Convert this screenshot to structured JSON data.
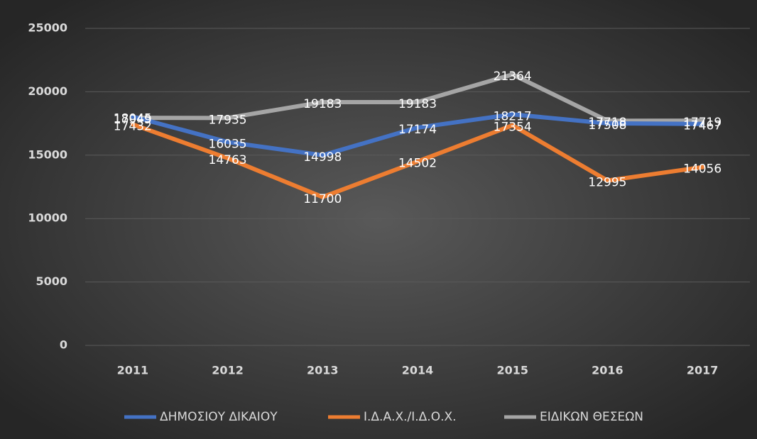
{
  "chart_data": {
    "type": "line",
    "categories": [
      "2011",
      "2012",
      "2013",
      "2014",
      "2015",
      "2016",
      "2017"
    ],
    "series": [
      {
        "name": "ΔΗΜΟΣΙΟΥ ΔΙΚΑΙΟΥ",
        "color": "#4472c4",
        "values": [
          18045,
          16035,
          14998,
          17174,
          18217,
          17508,
          17467
        ]
      },
      {
        "name": "Ι.Δ.Α.Χ./Ι.Δ.Ο.Χ.",
        "color": "#ed7d31",
        "values": [
          17432,
          14763,
          11700,
          14502,
          17354,
          12995,
          14056
        ]
      },
      {
        "name": "ΕΙΔΙΚΩΝ ΘΕΣΕΩΝ",
        "color": "#a5a5a5",
        "values": [
          17949,
          17935,
          19183,
          19183,
          21364,
          17718,
          17719
        ]
      }
    ],
    "ylim": [
      0,
      25000
    ],
    "yticks": [
      0,
      5000,
      10000,
      15000,
      20000,
      25000
    ],
    "grid": true,
    "legend": "bottom"
  }
}
